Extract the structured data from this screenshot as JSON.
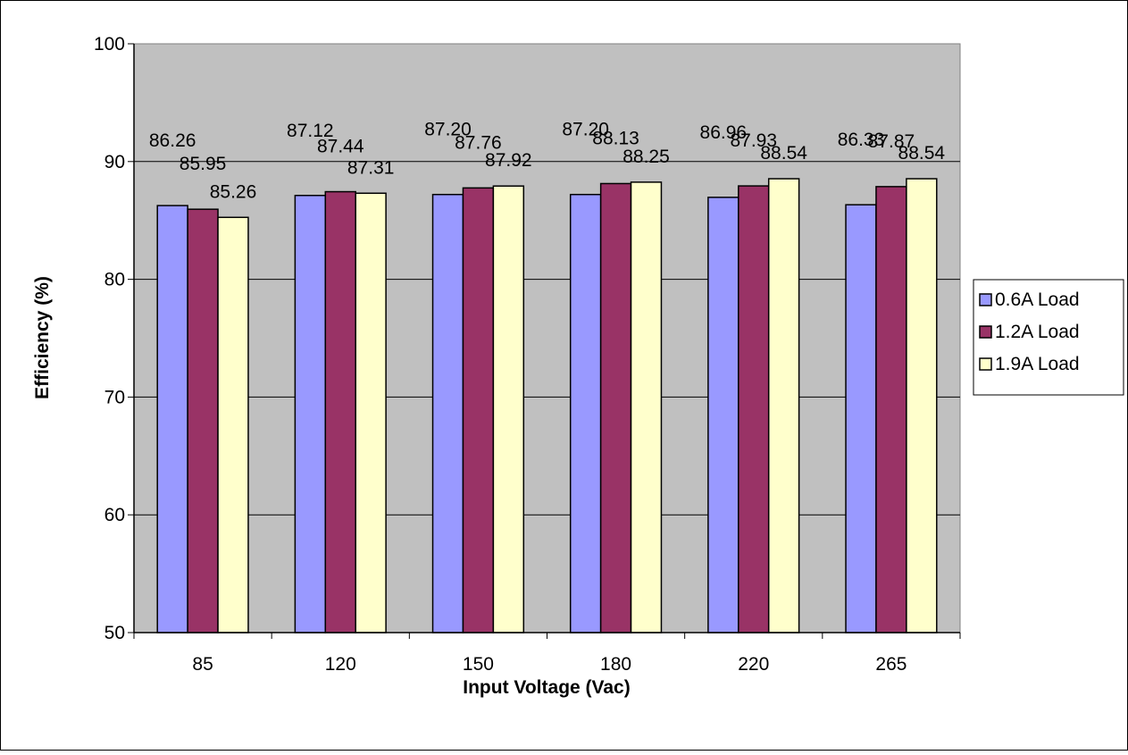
{
  "chart_data": {
    "type": "bar",
    "title": "",
    "xlabel": "Input Voltage (Vac)",
    "ylabel": "Efficiency (%)",
    "categories": [
      "85",
      "120",
      "150",
      "180",
      "220",
      "265"
    ],
    "yticks": [
      "50",
      "60",
      "70",
      "80",
      "90",
      "100"
    ],
    "ylim": [
      50,
      100
    ],
    "grid": true,
    "legend_position": "right",
    "series": [
      {
        "name": "0.6A Load",
        "values": [
          86.26,
          87.12,
          87.2,
          87.2,
          86.96,
          86.33
        ],
        "labels": [
          "86.26",
          "87.12",
          "87.20",
          "87.20",
          "86.96",
          "86.33"
        ],
        "color": "#9999ff"
      },
      {
        "name": "1.2A Load",
        "values": [
          85.95,
          87.44,
          87.76,
          88.13,
          87.93,
          87.87
        ],
        "labels": [
          "85.95",
          "87.44",
          "87.76",
          "88.13",
          "87.93",
          "87.87"
        ],
        "color": "#993366"
      },
      {
        "name": "1.9A Load",
        "values": [
          85.26,
          87.31,
          87.92,
          88.25,
          88.54,
          88.54
        ],
        "labels": [
          "85.26",
          "87.31",
          "87.92",
          "88.25",
          "88.54",
          "88.54"
        ],
        "color": "#ffffcc"
      }
    ],
    "colors": {
      "plot_background": "#c0c0c0",
      "gridline": "#000000",
      "axis": "#000000"
    }
  }
}
